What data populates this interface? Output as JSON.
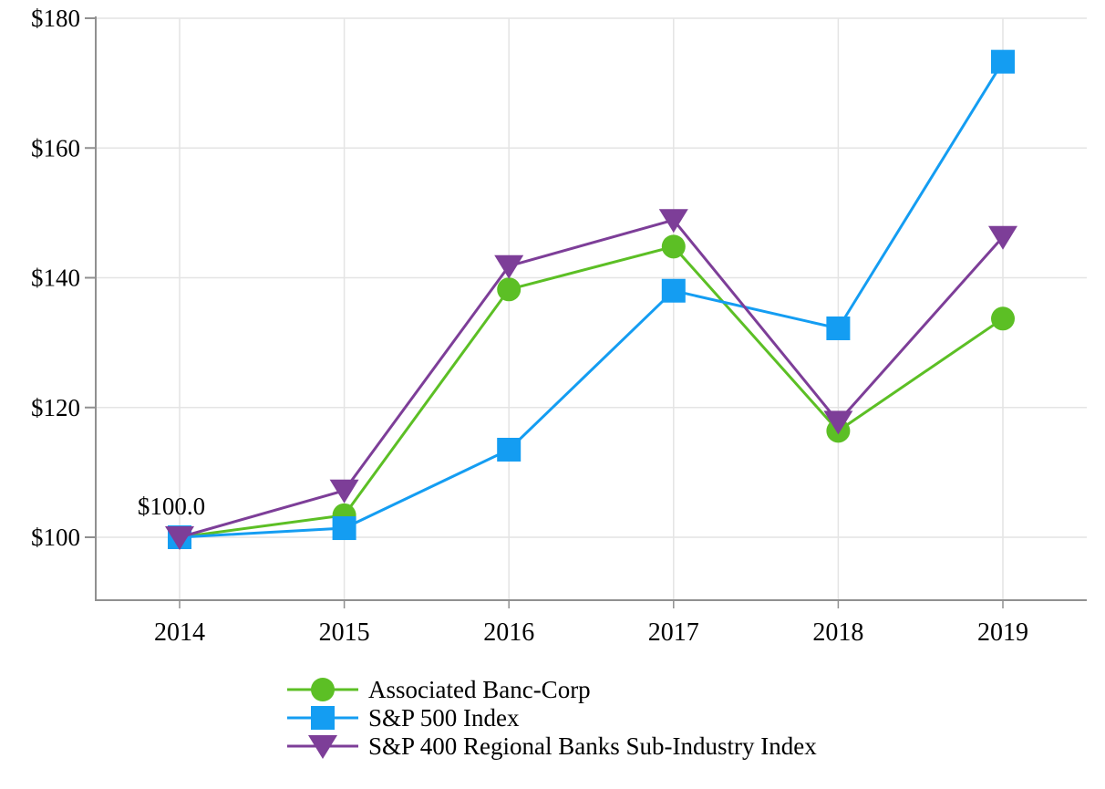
{
  "chart_data": {
    "type": "line",
    "x": [
      "2014",
      "2015",
      "2016",
      "2017",
      "2018",
      "2019"
    ],
    "series": [
      {
        "name": "Associated Banc-Corp",
        "marker": "circle",
        "color": "#5cbf25",
        "values": [
          100.0,
          103.4,
          138.2,
          144.8,
          116.4,
          133.7
        ]
      },
      {
        "name": "S&P 500 Index",
        "marker": "square",
        "color": "#149df2",
        "values": [
          100.0,
          101.4,
          113.5,
          138.0,
          132.2,
          173.3
        ]
      },
      {
        "name": "S&P 400 Regional Banks Sub-Industry Index",
        "marker": "triangle-down",
        "color": "#7d3e98",
        "values": [
          100.0,
          107.2,
          141.8,
          148.9,
          117.8,
          146.3
        ]
      }
    ],
    "title": "",
    "xlabel": "",
    "ylabel": "",
    "ylim": [
      90,
      180
    ],
    "yticks": [
      100,
      120,
      140,
      160,
      180
    ],
    "ytick_prefix": "$",
    "grid": true,
    "legend_position": "bottom",
    "annotation": {
      "text": "$100.0",
      "x_index": 0,
      "y": 100
    }
  },
  "colors": {
    "background": "#ffffff",
    "grid": "#e4e4e4",
    "axis": "#909090",
    "text": "#000000"
  }
}
